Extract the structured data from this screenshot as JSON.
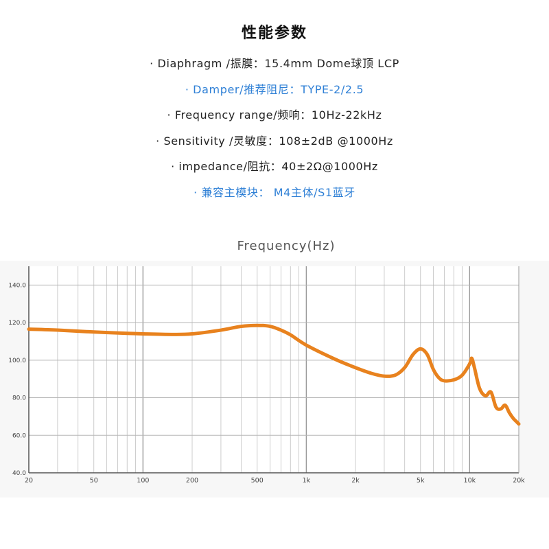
{
  "title": "性能参数",
  "specs": [
    {
      "text": "· Diaphragm /振膜：15.4mm  Dome球顶 LCP",
      "highlight": false
    },
    {
      "text": "· Damper/推荐阻尼：TYPE-2/2.5",
      "highlight": true
    },
    {
      "text": "· Frequency range/频响：10Hz-22kHz",
      "highlight": false
    },
    {
      "text": "· Sensitivity /灵敏度：108±2dB @1000Hz",
      "highlight": false
    },
    {
      "text": "· impedance/阻抗：40±2Ω@1000Hz",
      "highlight": false
    },
    {
      "text": "· 兼容主模块： M4主体/S1蓝牙",
      "highlight": true
    }
  ],
  "colors": {
    "accent": "#2f80d6",
    "curve": "#e8821e",
    "grid": "#cccccc",
    "axis": "#555555"
  },
  "chart_data": {
    "type": "line",
    "title": "Frequency(Hz)",
    "x_scale": "log",
    "xlim": [
      20,
      20000
    ],
    "ylim": [
      40,
      150
    ],
    "grid": true,
    "x_ticks": [
      {
        "value": 20,
        "label": "20"
      },
      {
        "value": 50,
        "label": "50"
      },
      {
        "value": 100,
        "label": "100"
      },
      {
        "value": 200,
        "label": "200"
      },
      {
        "value": 500,
        "label": "500"
      },
      {
        "value": 1000,
        "label": "1k"
      },
      {
        "value": 2000,
        "label": "2k"
      },
      {
        "value": 5000,
        "label": "5k"
      },
      {
        "value": 10000,
        "label": "10k"
      },
      {
        "value": 20000,
        "label": "20k"
      }
    ],
    "y_ticks": [
      {
        "value": 40,
        "label": "40.0"
      },
      {
        "value": 60,
        "label": "60.0"
      },
      {
        "value": 80,
        "label": "80.0"
      },
      {
        "value": 100,
        "label": "100.0"
      },
      {
        "value": 120,
        "label": "120.0"
      },
      {
        "value": 140,
        "label": "140.0"
      }
    ],
    "series": [
      {
        "x": [
          20,
          30,
          50,
          80,
          100,
          150,
          200,
          300,
          400,
          500,
          600,
          700,
          800,
          1000,
          1500,
          2000,
          2500,
          3000,
          3500,
          4000,
          4500,
          5000,
          5500,
          6000,
          6500,
          7000,
          8000,
          9000,
          10000,
          10300,
          10700,
          11500,
          12500,
          13500,
          14500,
          15500,
          16500,
          17500,
          18500,
          19500,
          20000
        ],
        "y": [
          116.5,
          116,
          115,
          114.3,
          114,
          113.7,
          114,
          116,
          118,
          118.5,
          118,
          116,
          113.5,
          108,
          100.5,
          96,
          93,
          91.5,
          92,
          96,
          103,
          106,
          103,
          95,
          90.5,
          89,
          89.5,
          92,
          98,
          101,
          96,
          85,
          81,
          83,
          75,
          74,
          76,
          72,
          69,
          67,
          66
        ]
      }
    ]
  }
}
